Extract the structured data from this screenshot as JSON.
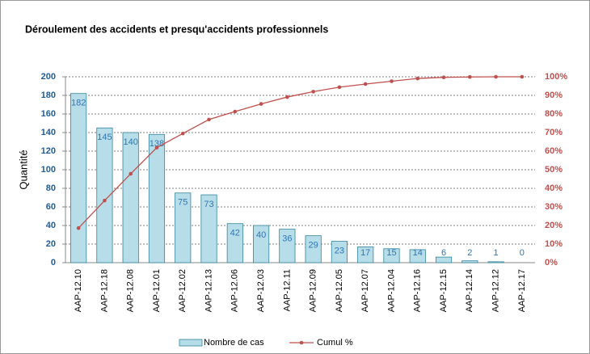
{
  "chart_data": {
    "type": "pareto",
    "title": "Déroulement des accidents et presqu'accidents professionnels",
    "ylabel": "Quantité",
    "categories": [
      "AAP-12.10",
      "AAP-12.18",
      "AAP-12.08",
      "AAP-12.01",
      "AAP-12.02",
      "AAP-12.13",
      "AAP-12.06",
      "AAP-12.03",
      "AAP-12.11",
      "AAP-12.09",
      "AAP-12.05",
      "AAP-12.07",
      "AAP-12.04",
      "AAP-12.16",
      "AAP-12.15",
      "AAP-12.14",
      "AAP-12.12",
      "AAP-12.17"
    ],
    "series": [
      {
        "name": "Nombre de cas",
        "type": "bar",
        "color": "#b7dee8",
        "values": [
          182,
          145,
          140,
          138,
          75,
          73,
          42,
          40,
          36,
          29,
          23,
          17,
          15,
          14,
          6,
          2,
          1,
          0
        ]
      },
      {
        "name": "Cumul %",
        "type": "line",
        "color": "#c0504d",
        "axis": "y2",
        "values": [
          18.6,
          33.4,
          47.8,
          61.9,
          69.5,
          77.0,
          81.3,
          85.4,
          89.1,
          92.0,
          94.4,
          96.1,
          97.6,
          99.1,
          99.7,
          99.9,
          100,
          100
        ]
      }
    ],
    "ylim": [
      0,
      200
    ],
    "yticks": [
      0,
      20,
      40,
      60,
      80,
      100,
      120,
      140,
      160,
      180,
      200
    ],
    "y2lim": [
      0,
      100
    ],
    "y2ticks": [
      {
        "value": 0,
        "label": "0%"
      },
      {
        "value": 10,
        "label": "10%"
      },
      {
        "value": 20,
        "label": "20%"
      },
      {
        "value": 30,
        "label": "30%"
      },
      {
        "value": 40,
        "label": "40%"
      },
      {
        "value": 50,
        "label": "50%"
      },
      {
        "value": 60,
        "label": "60%"
      },
      {
        "value": 70,
        "label": "70%"
      },
      {
        "value": 80,
        "label": "80%"
      },
      {
        "value": 90,
        "label": "90%"
      },
      {
        "value": 100,
        "label": "100%"
      }
    ],
    "grid": true,
    "legend": "bottom"
  }
}
